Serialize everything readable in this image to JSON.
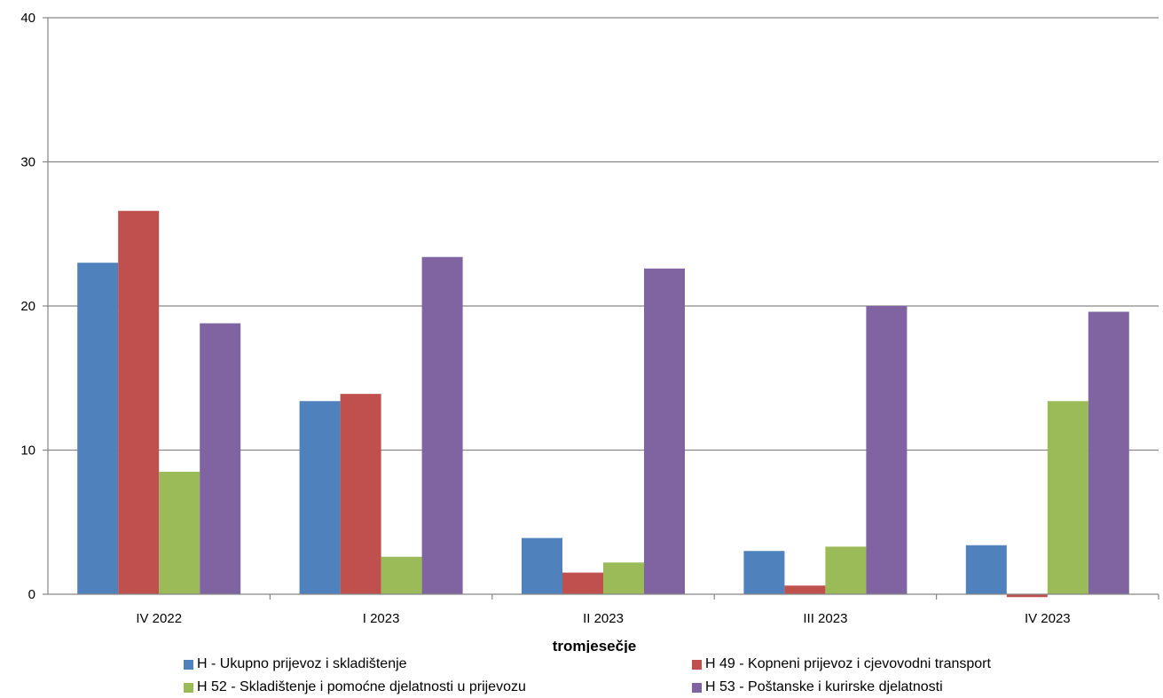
{
  "chart_data": {
    "type": "bar",
    "title": "",
    "xlabel": "tromjesečje",
    "ylabel": "",
    "ylim": [
      0,
      40
    ],
    "yticks": [
      "0",
      "10",
      "20",
      "30",
      "40"
    ],
    "grid": true,
    "legend_position": "bottom",
    "categories": [
      "IV 2022",
      "I 2023",
      "II 2023",
      "III 2023",
      "IV 2023"
    ],
    "series": [
      {
        "name": "H - Ukupno prijevoz i skladištenje",
        "color": "#4f81bd",
        "values": [
          23.0,
          13.4,
          3.9,
          3.0,
          3.4
        ]
      },
      {
        "name": "H 49 - Kopneni prijevoz i cjevovodni transport",
        "color": "#c0504d",
        "values": [
          26.6,
          13.9,
          1.5,
          0.6,
          -0.2
        ]
      },
      {
        "name": "H 52 - Skladištenje i pomoćne djelatnosti u prijevozu",
        "color": "#9bbb59",
        "values": [
          8.5,
          2.6,
          2.2,
          3.3,
          13.4
        ]
      },
      {
        "name": "H 53 - Poštanske i kurirske djelatnosti",
        "color": "#8064a2",
        "values": [
          18.8,
          23.4,
          22.6,
          20.0,
          19.6
        ]
      }
    ]
  }
}
